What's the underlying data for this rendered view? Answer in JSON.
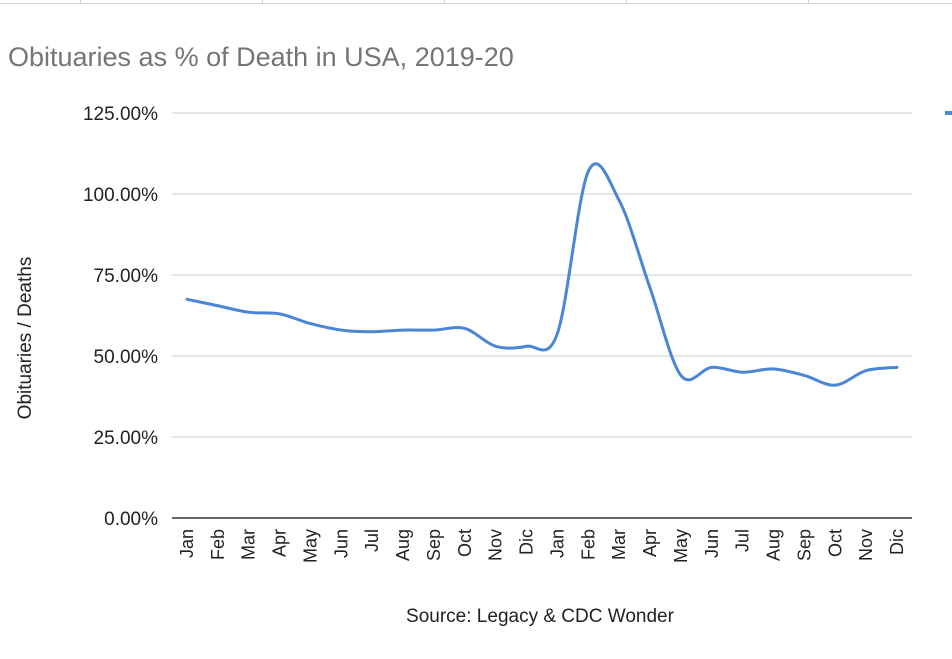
{
  "chart_data": {
    "type": "line",
    "title": "Obituaries as % of Death in USA, 2019-20",
    "xlabel": "Source: Legacy & CDC Wonder",
    "ylabel": "Obituaries / Deaths",
    "ylim": [
      0,
      1.25
    ],
    "y_ticks": [
      "0.00%",
      "25.00%",
      "50.00%",
      "75.00%",
      "100.00%",
      "125.00%"
    ],
    "categories": [
      "Jan",
      "Feb",
      "Mar",
      "Apr",
      "May",
      "Jun",
      "Jul",
      "Aug",
      "Sep",
      "Oct",
      "Nov",
      "Dic",
      "Jan",
      "Feb",
      "Mar",
      "Apr",
      "May",
      "Jun",
      "Jul",
      "Aug",
      "Sep",
      "Oct",
      "Nov",
      "Dic"
    ],
    "series": [
      {
        "color": "#4a86d4",
        "values": [
          0.675,
          0.655,
          0.635,
          0.63,
          0.6,
          0.58,
          0.575,
          0.58,
          0.58,
          0.585,
          0.53,
          0.53,
          0.57,
          1.07,
          0.98,
          0.71,
          0.44,
          0.465,
          0.45,
          0.46,
          0.44,
          0.41,
          0.455,
          0.465
        ]
      }
    ],
    "grid": true,
    "gridline_color": "#cccccc"
  }
}
